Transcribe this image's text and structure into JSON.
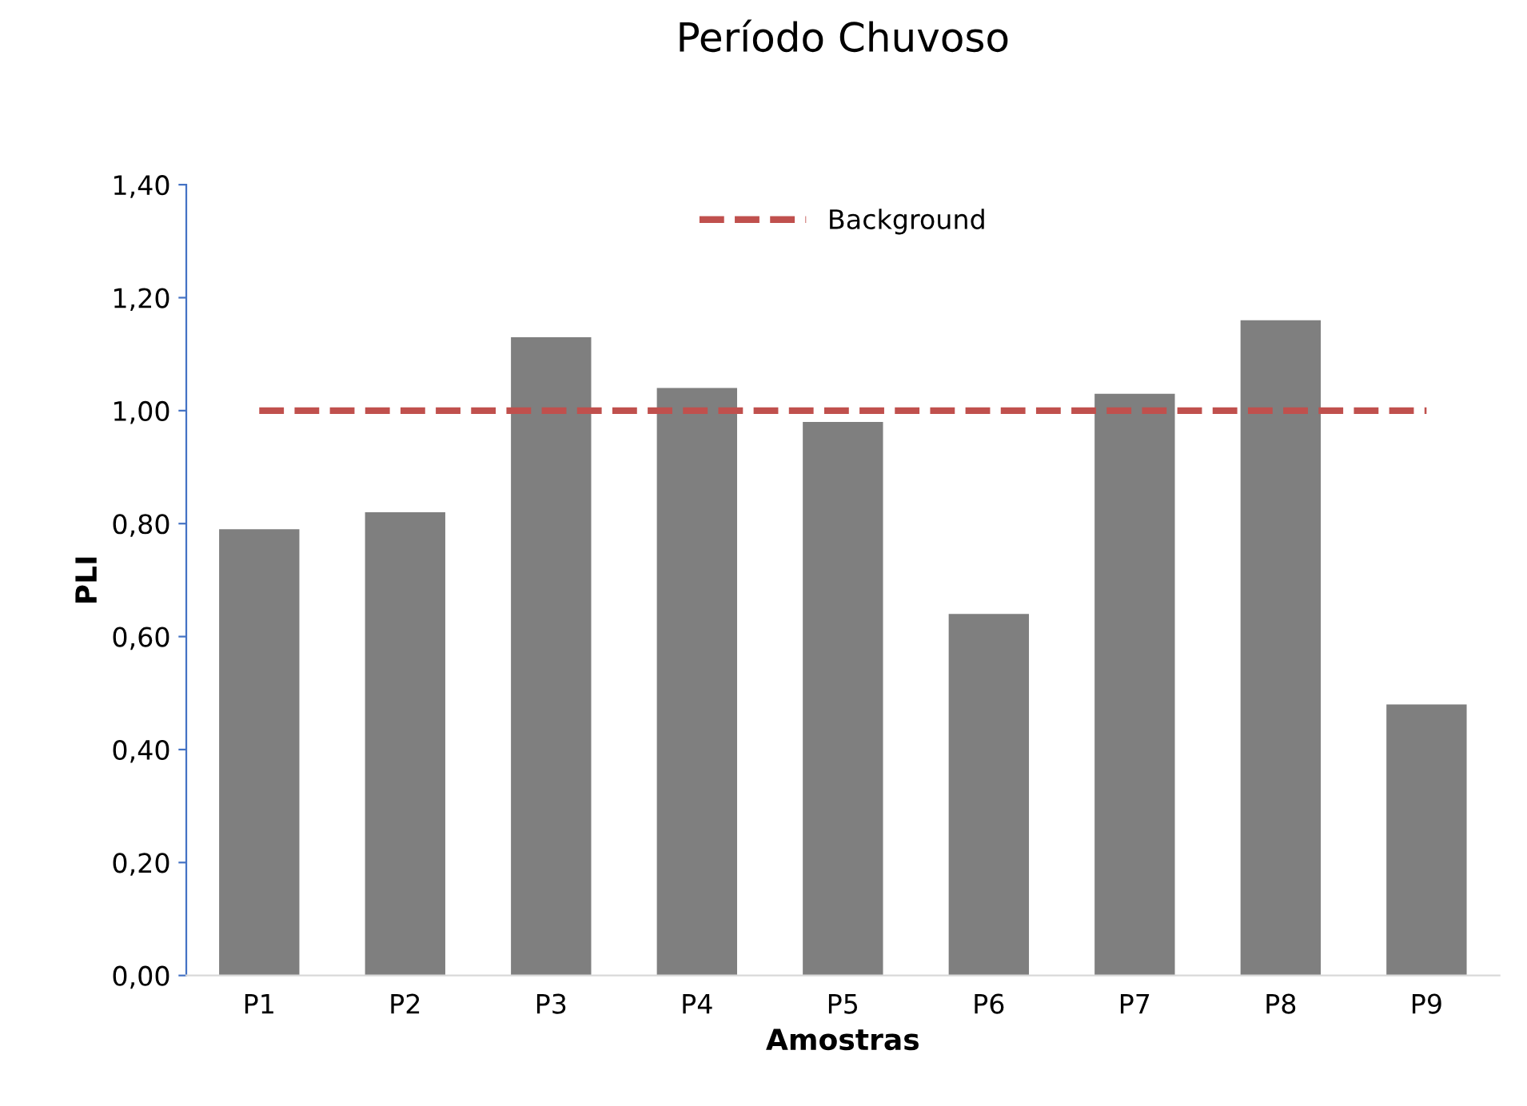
{
  "chart_data": {
    "type": "bar",
    "title": "Período Chuvoso",
    "xlabel": "Amostras",
    "ylabel": "PLI",
    "categories": [
      "P1",
      "P2",
      "P3",
      "P4",
      "P5",
      "P6",
      "P7",
      "P8",
      "P9"
    ],
    "series": [
      {
        "color": "#7f7f7f",
        "values": [
          0.79,
          0.82,
          1.13,
          1.04,
          0.98,
          0.64,
          1.03,
          1.16,
          0.48
        ]
      },
      {
        "name": "Background",
        "type": "line",
        "line_style": "dashed",
        "color": "#c0504d",
        "values": [
          1.0,
          1.0,
          1.0,
          1.0,
          1.0,
          1.0,
          1.0,
          1.0,
          1.0
        ]
      }
    ],
    "ylim": [
      0,
      1.4
    ],
    "yticks": [
      {
        "value": 0,
        "label": "0,00"
      },
      {
        "value": 0.2,
        "label": "0,20"
      },
      {
        "value": 0.4,
        "label": "0,40"
      },
      {
        "value": 0.6,
        "label": "0,60"
      },
      {
        "value": 0.8,
        "label": "0,80"
      },
      {
        "value": 1.0,
        "label": "1,00"
      },
      {
        "value": 1.2,
        "label": "1,20"
      },
      {
        "value": 1.4,
        "label": "1,40"
      }
    ],
    "grid": false,
    "legend": "top"
  }
}
